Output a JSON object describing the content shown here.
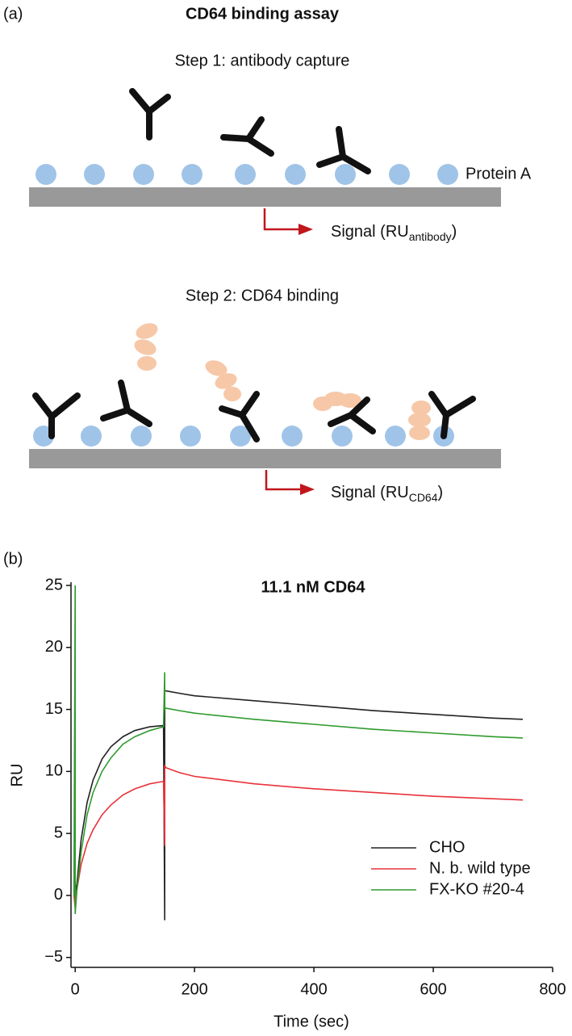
{
  "diagram": {
    "panel_label": "(a)",
    "title": "CD64 binding assay",
    "step1": {
      "title": "Step 1: antibody capture",
      "protein_label": "Protein A",
      "signal": [
        "Signal (RU",
        "antibody",
        ")"
      ]
    },
    "step2": {
      "title": "Step 2: CD64 binding",
      "signal": [
        "Signal (RU",
        "CD64",
        ")"
      ]
    }
  },
  "chart_data": {
    "type": "line",
    "panel_label": "(b)",
    "title": "11.1 nM CD64",
    "x_label": "Time (sec)",
    "y_label": "RU",
    "x": [
      -2,
      0,
      0,
      3,
      10,
      20,
      30,
      45,
      60,
      80,
      100,
      125,
      148,
      150,
      150,
      152,
      175,
      200,
      300,
      400,
      500,
      600,
      700,
      750
    ],
    "series": [
      {
        "name": "CHO",
        "color": "#222222",
        "values": [
          0,
          0,
          0,
          1,
          4.5,
          7.5,
          9.3,
          11,
          12,
          12.8,
          13.3,
          13.6,
          13.7,
          -2,
          16.5,
          16.5,
          16.3,
          16.1,
          15.7,
          15.3,
          14.9,
          14.6,
          14.3,
          14.2
        ]
      },
      {
        "name": "N. b. wild type",
        "color": "#e8323a",
        "values": [
          0,
          -1,
          0,
          0.5,
          2.5,
          4.2,
          5.3,
          6.5,
          7.3,
          8.1,
          8.6,
          9,
          9.2,
          4,
          10.5,
          10.3,
          9.9,
          9.6,
          9,
          8.6,
          8.3,
          8,
          7.8,
          7.7
        ]
      },
      {
        "name": "FX-KO #20-4",
        "color": "#2e9a2e",
        "values": [
          0,
          25,
          -1.5,
          0.5,
          3.5,
          6.5,
          8.3,
          10,
          11.1,
          12.2,
          12.8,
          13.3,
          13.6,
          18,
          15,
          15.1,
          14.9,
          14.7,
          14.2,
          13.8,
          13.4,
          13.1,
          12.8,
          12.7
        ]
      }
    ],
    "xlim": [
      -7,
      800
    ],
    "xticks": [
      0,
      200,
      400,
      600,
      800
    ],
    "ylim": [
      -5.8,
      25
    ],
    "yticks": [
      {
        "value": -5,
        "label": "−5"
      },
      0,
      5,
      10,
      15,
      20,
      25
    ],
    "legend": "lower right"
  }
}
